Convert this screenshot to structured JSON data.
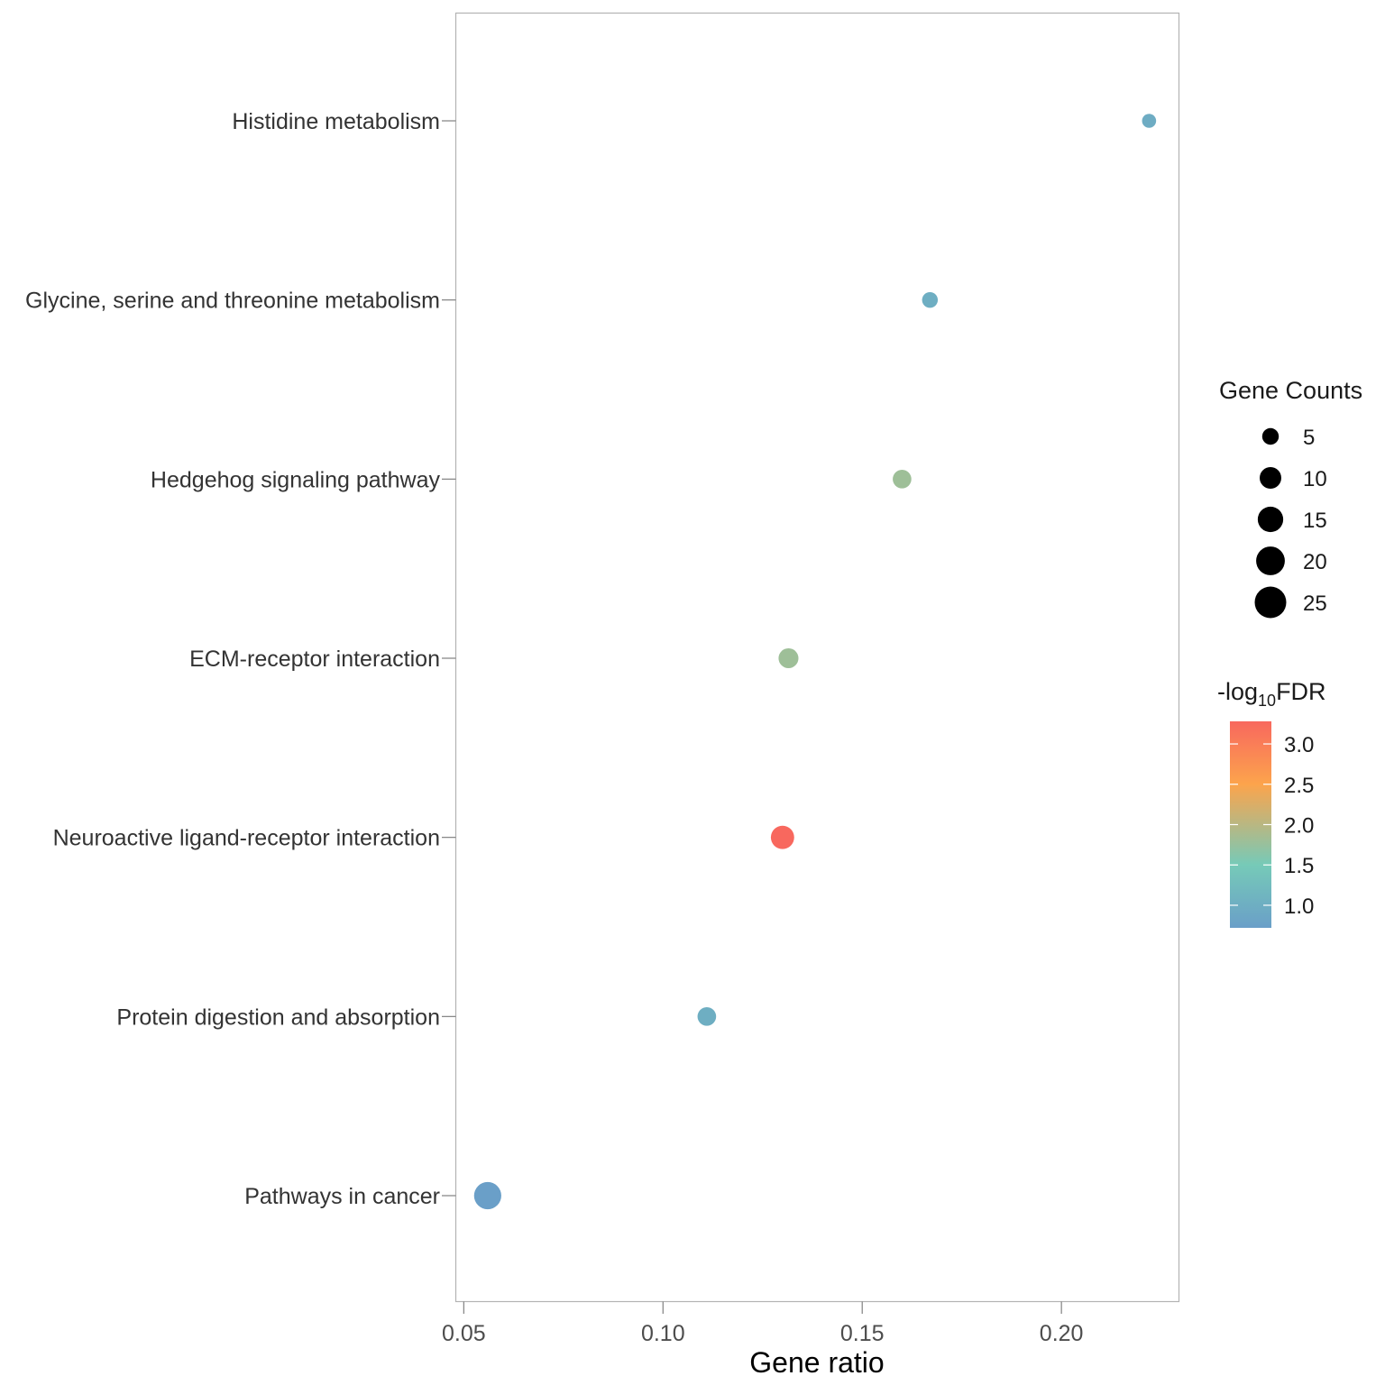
{
  "chart_data": {
    "type": "scatter",
    "subtype": "bubble",
    "title": "",
    "xlabel": "Gene ratio",
    "ylabel": "",
    "xlim": [
      0.048,
      0.2295
    ],
    "xticks": [
      0.05,
      0.1,
      0.15,
      0.2
    ],
    "xtick_labels": [
      "0.05",
      "0.10",
      "0.15",
      "0.20"
    ],
    "grid": false,
    "categories": [
      "Histidine metabolism",
      "Glycine, serine and threonine metabolism",
      "Hedgehog signaling pathway",
      "ECM-receptor interaction",
      "Neuroactive ligand-receptor interaction",
      "Protein digestion and absorption",
      "Pathways in cancer"
    ],
    "points": [
      {
        "pathway": "Histidine metabolism",
        "gene_ratio": 0.222,
        "gene_count": 3,
        "neg_log10_fdr": 0.95
      },
      {
        "pathway": "Glycine, serine and threonine metabolism",
        "gene_ratio": 0.167,
        "gene_count": 4,
        "neg_log10_fdr": 1.0
      },
      {
        "pathway": "Hedgehog signaling pathway",
        "gene_ratio": 0.16,
        "gene_count": 6,
        "neg_log10_fdr": 1.8
      },
      {
        "pathway": "ECM-receptor interaction",
        "gene_ratio": 0.1315,
        "gene_count": 7,
        "neg_log10_fdr": 1.8
      },
      {
        "pathway": "Neuroactive ligand-receptor interaction",
        "gene_ratio": 0.13,
        "gene_count": 10,
        "neg_log10_fdr": 3.28
      },
      {
        "pathway": "Protein digestion and absorption",
        "gene_ratio": 0.111,
        "gene_count": 6,
        "neg_log10_fdr": 1.0
      },
      {
        "pathway": "Pathways in cancer",
        "gene_ratio": 0.056,
        "gene_count": 14,
        "neg_log10_fdr": 0.72
      }
    ],
    "size_legend": {
      "title": "Gene Counts",
      "values": [
        5,
        10,
        15,
        20,
        25
      ],
      "labels": [
        "5",
        "10",
        "15",
        "20",
        "25"
      ]
    },
    "color_legend": {
      "title_prefix": "-log",
      "title_sub": "10",
      "title_suffix": "FDR",
      "range": [
        0.72,
        3.28
      ],
      "ticks": [
        1.0,
        1.5,
        2.0,
        2.5,
        3.0
      ],
      "tick_labels": [
        "1.0",
        "1.5",
        "2.0",
        "2.5",
        "3.0"
      ],
      "color_stops": [
        {
          "value": 0.72,
          "color": "#6a9fc8"
        },
        {
          "value": 1.5,
          "color": "#76cab8"
        },
        {
          "value": 2.5,
          "color": "#fca44c"
        },
        {
          "value": 3.28,
          "color": "#f8685e"
        }
      ]
    },
    "legend_position": "right"
  }
}
